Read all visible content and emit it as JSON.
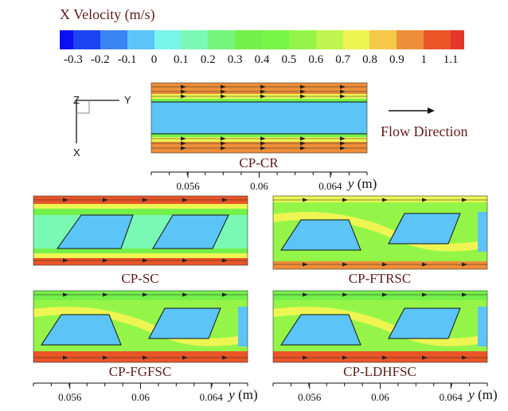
{
  "legend": {
    "title": "X Velocity (m/s)",
    "colors": [
      "#0a10f0",
      "#1e44f2",
      "#3b84f4",
      "#5cc4f6",
      "#79f5ea",
      "#79f9b4",
      "#72f57a",
      "#74f04a",
      "#78f546",
      "#94f548",
      "#bef54e",
      "#eef552",
      "#f6c84a",
      "#ee8e38",
      "#ea5528",
      "#e6362a"
    ],
    "ticks": [
      "-0.3",
      "-0.2",
      "-0.1",
      "0",
      "0.1",
      "0.2",
      "0.3",
      "0.4",
      "0.5",
      "0.6",
      "0.7",
      "0.8",
      "0.9",
      "1",
      "1.1"
    ]
  },
  "axes_triad": {
    "z": "Z",
    "y": "Y",
    "x": "X"
  },
  "flow_direction": "Flow Direction",
  "panels": [
    {
      "label": "CP-CR"
    },
    {
      "label": "CP-SC"
    },
    {
      "label": "CP-FTRSC"
    },
    {
      "label": "CP-FGFSC"
    },
    {
      "label": "CP-LDHFSC"
    }
  ],
  "y_axis": {
    "ticks": [
      "0.056",
      "0.06",
      "0.064"
    ],
    "unit_var": "y",
    "unit": "(m)"
  }
}
